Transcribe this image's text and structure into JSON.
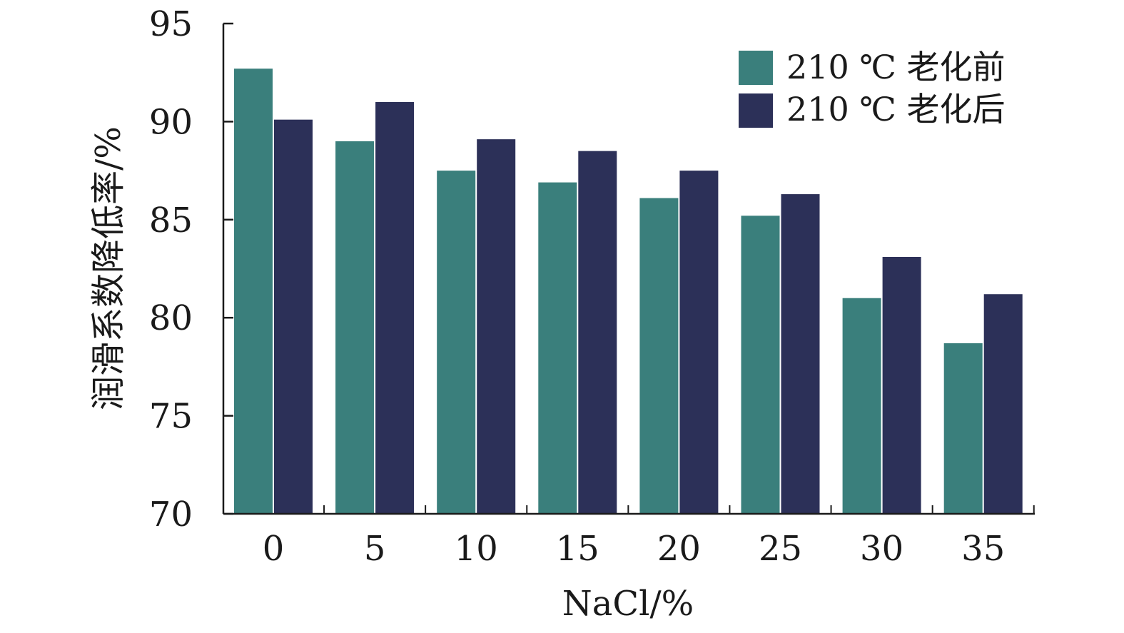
{
  "chart_data": {
    "type": "bar",
    "categories": [
      "0",
      "5",
      "10",
      "15",
      "20",
      "25",
      "30",
      "35"
    ],
    "series": [
      {
        "name": "210 ℃ 老化前",
        "color": "#3a7f7c",
        "values": [
          92.7,
          89.0,
          87.5,
          86.9,
          86.1,
          85.2,
          81.0,
          78.7
        ]
      },
      {
        "name": "210 ℃ 老化后",
        "color": "#2c3058",
        "values": [
          90.1,
          91.0,
          89.1,
          88.5,
          87.5,
          86.3,
          83.1,
          81.2
        ]
      }
    ],
    "xlabel": "NaCl/%",
    "ylabel": "润滑系数降低率/%",
    "ylim": [
      70,
      95
    ],
    "yticks": [
      "70",
      "75",
      "80",
      "85",
      "90",
      "95"
    ],
    "grid": false,
    "legend_position": "top-right"
  }
}
